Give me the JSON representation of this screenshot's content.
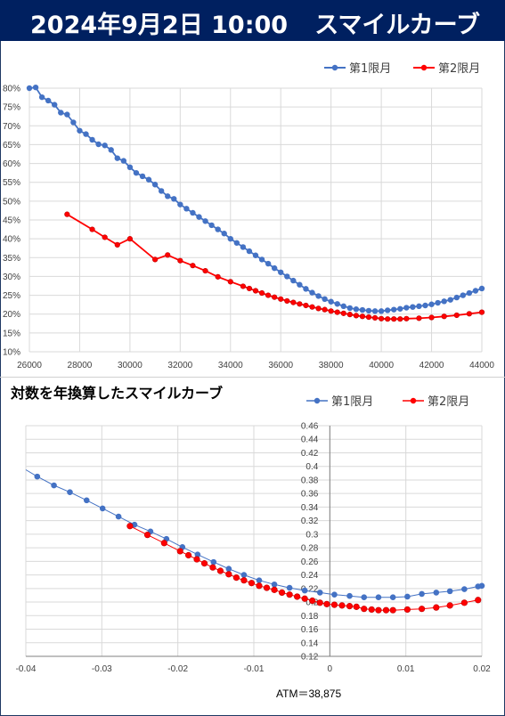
{
  "header": {
    "date": "2024年9月2日 10:00",
    "title": "スマイルカーブ"
  },
  "colors": {
    "header_bg": "#002060",
    "series1": "#4472c4",
    "series2": "#ff0000",
    "grid": "#d9d9d9"
  },
  "atm_label": "ATM＝38,875",
  "chart_data": [
    {
      "type": "line",
      "title": "",
      "xlabel": "",
      "ylabel": "",
      "xlim": [
        26000,
        44000
      ],
      "ylim": [
        0.1,
        0.8
      ],
      "x_ticks": [
        "26000",
        "28000",
        "30000",
        "32000",
        "34000",
        "36000",
        "38000",
        "40000",
        "42000",
        "44000"
      ],
      "y_ticks": [
        "10%",
        "15%",
        "20%",
        "25%",
        "30%",
        "35%",
        "40%",
        "45%",
        "50%",
        "55%",
        "60%",
        "65%",
        "70%",
        "75%",
        "80%"
      ],
      "grid": true,
      "legend": "top-right",
      "series": [
        {
          "name": "第1限月",
          "color": "#4472c4",
          "x": [
            26000,
            26250,
            26500,
            26750,
            27000,
            27250,
            27500,
            27750,
            28000,
            28250,
            28500,
            28750,
            29000,
            29250,
            29500,
            29750,
            30000,
            30250,
            30500,
            30750,
            31000,
            31250,
            31500,
            31750,
            32000,
            32250,
            32500,
            32750,
            33000,
            33250,
            33500,
            33750,
            34000,
            34250,
            34500,
            34750,
            35000,
            35250,
            35500,
            35750,
            36000,
            36250,
            36500,
            36750,
            37000,
            37250,
            37500,
            37750,
            38000,
            38250,
            38500,
            38750,
            39000,
            39250,
            39500,
            39750,
            40000,
            40250,
            40500,
            40750,
            41000,
            41250,
            41500,
            41750,
            42000,
            42250,
            42500,
            42750,
            43000,
            43250,
            43500,
            43750,
            44000
          ],
          "y": [
            0.8,
            0.802,
            0.776,
            0.767,
            0.756,
            0.735,
            0.73,
            0.709,
            0.687,
            0.678,
            0.663,
            0.651,
            0.648,
            0.636,
            0.614,
            0.607,
            0.59,
            0.575,
            0.566,
            0.557,
            0.544,
            0.527,
            0.513,
            0.506,
            0.491,
            0.48,
            0.469,
            0.458,
            0.447,
            0.436,
            0.425,
            0.414,
            0.4,
            0.389,
            0.378,
            0.367,
            0.356,
            0.345,
            0.334,
            0.322,
            0.311,
            0.3,
            0.289,
            0.278,
            0.267,
            0.257,
            0.248,
            0.24,
            0.233,
            0.227,
            0.221,
            0.216,
            0.213,
            0.211,
            0.209,
            0.208,
            0.208,
            0.21,
            0.212,
            0.214,
            0.217,
            0.219,
            0.221,
            0.223,
            0.226,
            0.23,
            0.234,
            0.238,
            0.244,
            0.25,
            0.256,
            0.262,
            0.268
          ]
        },
        {
          "name": "第2限月",
          "color": "#ff0000",
          "x": [
            27500,
            28500,
            29000,
            29500,
            30000,
            31000,
            31500,
            32000,
            32500,
            33000,
            33500,
            34000,
            34500,
            34750,
            35000,
            35250,
            35500,
            35750,
            36000,
            36250,
            36500,
            36750,
            37000,
            37250,
            37500,
            37750,
            38000,
            38250,
            38500,
            38750,
            39000,
            39250,
            39500,
            39750,
            40000,
            40250,
            40500,
            40750,
            41000,
            41500,
            42000,
            42500,
            43000,
            43500,
            44000
          ],
          "y": [
            0.465,
            0.425,
            0.404,
            0.384,
            0.4,
            0.345,
            0.357,
            0.342,
            0.329,
            0.315,
            0.299,
            0.286,
            0.274,
            0.268,
            0.262,
            0.256,
            0.25,
            0.245,
            0.24,
            0.235,
            0.231,
            0.227,
            0.223,
            0.219,
            0.215,
            0.212,
            0.208,
            0.205,
            0.202,
            0.199,
            0.196,
            0.194,
            0.192,
            0.19,
            0.188,
            0.187,
            0.187,
            0.187,
            0.188,
            0.189,
            0.191,
            0.194,
            0.197,
            0.201,
            0.205
          ]
        }
      ]
    },
    {
      "type": "line",
      "title": "対数を年換算したスマイルカーブ",
      "xlabel": "",
      "ylabel": "",
      "xlim": [
        -0.04,
        0.02
      ],
      "ylim": [
        0.12,
        0.46
      ],
      "x_ticks": [
        "-0.04",
        "-0.03",
        "-0.02",
        "-0.01",
        "0",
        "0.01",
        "0.02"
      ],
      "y_ticks": [
        "0.12",
        "0.14",
        "0.16",
        "0.18",
        "0.2",
        "0.22",
        "0.24",
        "0.26",
        "0.28",
        "0.3",
        "0.32",
        "0.34",
        "0.36",
        "0.38",
        "0.4",
        "0.42",
        "0.44",
        "0.46"
      ],
      "grid": true,
      "legend": "top-right",
      "series": [
        {
          "name": "第1限月",
          "color": "#4472c4",
          "x": [
            -0.04,
            -0.0385,
            -0.0363,
            -0.0342,
            -0.032,
            -0.0299,
            -0.0278,
            -0.0257,
            -0.0236,
            -0.0215,
            -0.0194,
            -0.0174,
            -0.0153,
            -0.0133,
            -0.0113,
            -0.0093,
            -0.0073,
            -0.0053,
            -0.0033,
            -0.0013,
            0.0006,
            0.0026,
            0.0045,
            0.0064,
            0.0083,
            0.0102,
            0.0121,
            0.014,
            0.0158,
            0.0177,
            0.0195,
            0.02
          ],
          "y": [
            0.395,
            0.385,
            0.372,
            0.362,
            0.35,
            0.338,
            0.326,
            0.314,
            0.304,
            0.293,
            0.281,
            0.27,
            0.259,
            0.249,
            0.24,
            0.232,
            0.226,
            0.221,
            0.217,
            0.214,
            0.211,
            0.209,
            0.207,
            0.207,
            0.207,
            0.208,
            0.212,
            0.214,
            0.216,
            0.219,
            0.223,
            0.224
          ]
        },
        {
          "name": "第2限月",
          "color": "#ff0000",
          "x": [
            -0.0263,
            -0.024,
            -0.0218,
            -0.0197,
            -0.0186,
            -0.0175,
            -0.0165,
            -0.0154,
            -0.0144,
            -0.0133,
            -0.0123,
            -0.0113,
            -0.0103,
            -0.0093,
            -0.0083,
            -0.0073,
            -0.0063,
            -0.0053,
            -0.0043,
            -0.0033,
            -0.0023,
            -0.0013,
            -0.0004,
            0.0006,
            0.0016,
            0.0026,
            0.0035,
            0.0045,
            0.0055,
            0.0064,
            0.0074,
            0.0083,
            0.0102,
            0.0121,
            0.014,
            0.0158,
            0.0177,
            0.0195
          ],
          "y": [
            0.312,
            0.299,
            0.287,
            0.275,
            0.269,
            0.263,
            0.257,
            0.251,
            0.246,
            0.241,
            0.236,
            0.232,
            0.228,
            0.224,
            0.221,
            0.218,
            0.214,
            0.211,
            0.208,
            0.205,
            0.202,
            0.199,
            0.197,
            0.196,
            0.195,
            0.194,
            0.193,
            0.19,
            0.189,
            0.188,
            0.188,
            0.188,
            0.189,
            0.19,
            0.192,
            0.195,
            0.199,
            0.203
          ]
        }
      ]
    }
  ]
}
